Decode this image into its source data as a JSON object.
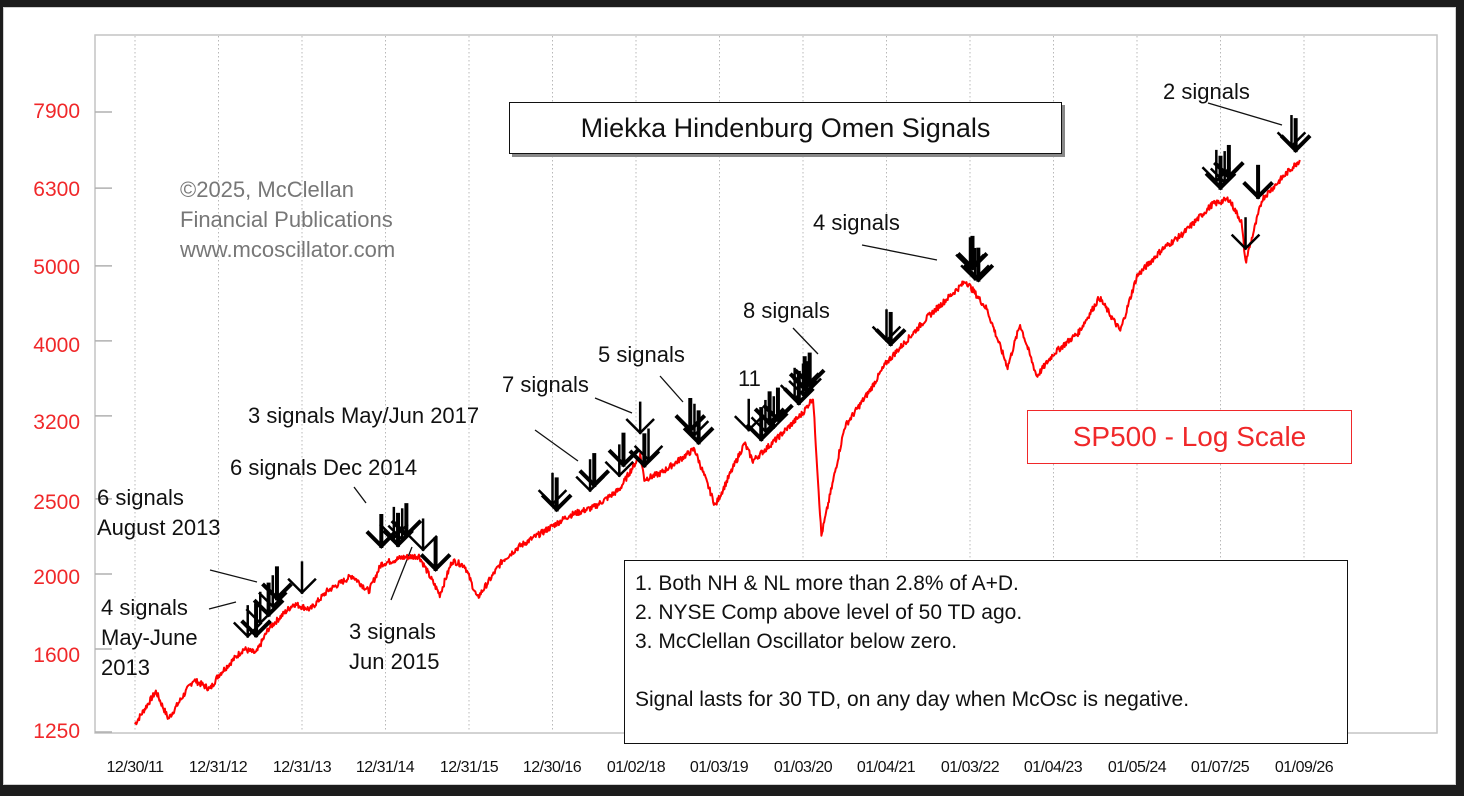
{
  "chart_data": {
    "type": "line",
    "title": "Miekka Hindenburg Omen Signals",
    "series_label": "SP500 - Log Scale",
    "yscale": "log",
    "ylabel": "",
    "xlabel": "",
    "ylim": [
      1250,
      7900
    ],
    "y_ticks": [
      1250,
      1600,
      2000,
      2500,
      3200,
      4000,
      5000,
      6300,
      7900
    ],
    "x_ticks": [
      "12/30/11",
      "12/31/12",
      "12/31/13",
      "12/31/14",
      "12/31/15",
      "12/30/16",
      "01/02/18",
      "01/03/19",
      "01/03/20",
      "01/04/21",
      "01/03/22",
      "01/04/23",
      "01/05/24",
      "01/07/25",
      "01/09/26"
    ],
    "grid": {
      "vertical": true,
      "horizontal": false,
      "style": "dotted"
    },
    "series": [
      {
        "name": "SP500",
        "color": "#ff0000",
        "x": [
          2012.0,
          2012.25,
          2012.4,
          2012.7,
          2012.9,
          2013.0,
          2013.3,
          2013.45,
          2013.6,
          2013.9,
          2014.1,
          2014.3,
          2014.6,
          2014.8,
          2014.95,
          2015.2,
          2015.4,
          2015.65,
          2015.8,
          2015.95,
          2016.1,
          2016.4,
          2016.6,
          2016.9,
          2017.2,
          2017.5,
          2017.8,
          2018.05,
          2018.1,
          2018.3,
          2018.7,
          2018.95,
          2019.3,
          2019.4,
          2019.7,
          2020.0,
          2020.12,
          2020.22,
          2020.5,
          2020.8,
          2021.0,
          2021.5,
          2021.95,
          2022.2,
          2022.45,
          2022.6,
          2022.8,
          2023.0,
          2023.3,
          2023.55,
          2023.8,
          2024.0,
          2024.3,
          2024.55,
          2024.9,
          2025.1,
          2025.25,
          2025.3,
          2025.5,
          2025.8,
          2025.95
        ],
        "values": [
          1280,
          1410,
          1300,
          1460,
          1420,
          1480,
          1600,
          1580,
          1700,
          1830,
          1800,
          1900,
          1990,
          1900,
          2060,
          2100,
          2110,
          1880,
          2080,
          2050,
          1860,
          2080,
          2170,
          2270,
          2380,
          2440,
          2570,
          2850,
          2650,
          2700,
          2900,
          2450,
          2950,
          2800,
          3000,
          3230,
          3380,
          2240,
          3100,
          3450,
          3750,
          4300,
          4780,
          4400,
          3700,
          4200,
          3600,
          3850,
          4100,
          4550,
          4120,
          4850,
          5250,
          5500,
          6000,
          6100,
          5700,
          5050,
          6100,
          6600,
          6850
        ]
      }
    ],
    "annotations": [
      {
        "text": "2 signals",
        "x": 2025.8,
        "target_price": 7500
      },
      {
        "text": "4 signals",
        "x": 2022.0,
        "target_price": 5100
      },
      {
        "text": "8 signals",
        "x": 2020.1,
        "target_price": 3900
      },
      {
        "text": "11",
        "x": 2019.5,
        "target_price": 3300
      },
      {
        "text": "5 signals",
        "x": 2018.6,
        "target_price": 3250
      },
      {
        "text": "7 signals",
        "x": 2018.0,
        "target_price": 3150
      },
      {
        "text": "3 signals May/Jun 2017",
        "x": 2017.4,
        "target_price": 2650
      },
      {
        "text": "6 signals Dec 2014",
        "x": 2014.9,
        "target_price": 2330
      },
      {
        "text": "6 signals August 2013",
        "x": 2013.65,
        "target_price": 1930
      },
      {
        "text": "4 signals May-June 2013",
        "x": 2013.4,
        "target_price": 1880
      },
      {
        "text": "3 signals Jun 2015",
        "x": 2015.4,
        "target_price": 2310
      }
    ],
    "signals": [
      2013.35,
      2013.45,
      2013.5,
      2013.6,
      2013.65,
      2013.7,
      2014.0,
      2014.95,
      2015.1,
      2015.15,
      2015.2,
      2015.25,
      2015.45,
      2015.6,
      2017.0,
      2017.05,
      2017.45,
      2017.5,
      2017.8,
      2017.85,
      2018.05,
      2018.1,
      2018.15,
      2018.65,
      2018.7,
      2018.75,
      2019.35,
      2019.5,
      2019.55,
      2019.6,
      2019.65,
      2019.7,
      2019.9,
      2019.95,
      2020.0,
      2020.02,
      2020.05,
      2020.08,
      2021.0,
      2021.05,
      2022.0,
      2022.03,
      2022.06,
      2022.1,
      2024.95,
      2025.0,
      2025.05,
      2025.1,
      2025.3,
      2025.45,
      2025.85,
      2025.9
    ]
  },
  "chart_title": "Miekka Hindenburg Omen Signals",
  "copyright": {
    "line1": "©2025, McClellan",
    "line2": "Financial Publications",
    "line3": "www.mcoscillator.com"
  },
  "y_labels": [
    "7900",
    "6300",
    "5000",
    "4000",
    "3200",
    "2500",
    "2000",
    "1600",
    "1250"
  ],
  "x_labels": [
    "12/30/11",
    "12/31/12",
    "12/31/13",
    "12/31/14",
    "12/31/15",
    "12/30/16",
    "01/02/18",
    "01/03/19",
    "01/03/20",
    "01/04/21",
    "01/03/22",
    "01/04/23",
    "01/05/24",
    "01/07/25",
    "01/09/26"
  ],
  "series_box": "SP500 - Log Scale",
  "labels": {
    "two_signals": "2 signals",
    "four_signals": "4 signals",
    "eight_signals": "8 signals",
    "eleven": "11",
    "five_signals": "5 signals",
    "seven_signals": "7 signals",
    "may_jun_2017": "3 signals May/Jun 2017",
    "dec_2014": "6 signals Dec 2014",
    "aug_2013_l1": "6 signals",
    "aug_2013_l2": "August 2013",
    "may_june_2013_l1": "4 signals",
    "may_june_2013_l2": "May-June",
    "may_june_2013_l3": "2013",
    "jun_2015_l1": "3 signals",
    "jun_2015_l2": "Jun 2015"
  },
  "rules": {
    "r1": "1. Both NH & NL more than 2.8% of A+D.",
    "r2": "2. NYSE Comp above level of 50 TD ago.",
    "r3": "3. McClellan Oscillator below zero.",
    "note": "Signal lasts for 30 TD, on any day when McOsc is negative."
  },
  "colors": {
    "price_line": "#ff0000",
    "axis_label": "#f0282a",
    "frame": "#1c1c1c"
  }
}
